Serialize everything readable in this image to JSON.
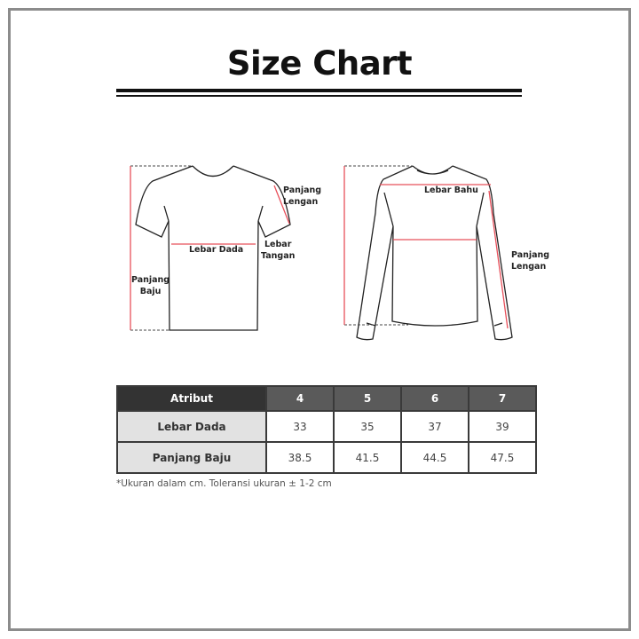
{
  "title": "Size Chart",
  "labels": {
    "tshirt": {
      "sleeve_length": [
        "Panjang",
        "Lengan"
      ],
      "chest": "Lebar Dada",
      "sleeve_width": [
        "Lebar",
        "Tangan"
      ],
      "body_length": [
        "Panjang",
        "Baju"
      ]
    },
    "longsleeve": {
      "shoulder": "Lebar Bahu",
      "sleeve_length": [
        "Panjang",
        "Lengan"
      ]
    }
  },
  "table": {
    "header": [
      "Atribut",
      "4",
      "5",
      "6",
      "7"
    ],
    "rows": [
      {
        "label": "Lebar Dada",
        "values": [
          "33",
          "35",
          "37",
          "39"
        ]
      },
      {
        "label": "Panjang Baju",
        "values": [
          "38.5",
          "41.5",
          "44.5",
          "47.5"
        ]
      }
    ]
  },
  "note": "*Ukuran dalam cm. Toleransi ukuran ± 1-2 cm",
  "colors": {
    "measure_line": "#e8505b",
    "header_dark": "#333333",
    "header_size": "#5a5a5a",
    "row_label_bg": "#e2e2e2",
    "frame": "#8c8c8c"
  }
}
